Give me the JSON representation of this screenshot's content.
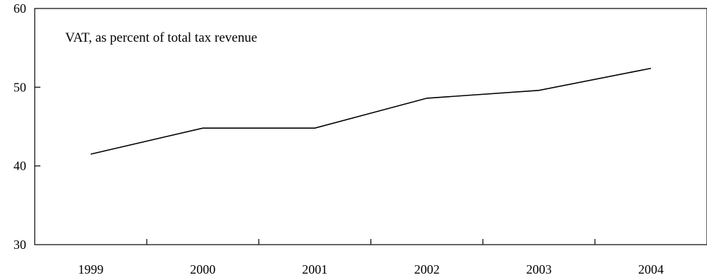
{
  "chart_data": {
    "type": "line",
    "title": "",
    "xlabel": "",
    "ylabel": "",
    "annotation": "VAT, as percent of total tax revenue",
    "categories": [
      "1999",
      "2000",
      "2001",
      "2002",
      "2003",
      "2004"
    ],
    "series": [
      {
        "values": [
          41.5,
          44.8,
          44.8,
          48.6,
          49.6,
          52.4
        ]
      }
    ],
    "yticks": [
      "30",
      "40",
      "50",
      "60"
    ],
    "ylim": [
      30,
      60
    ],
    "grid": false,
    "legend": "none",
    "line_color": "#000000"
  }
}
